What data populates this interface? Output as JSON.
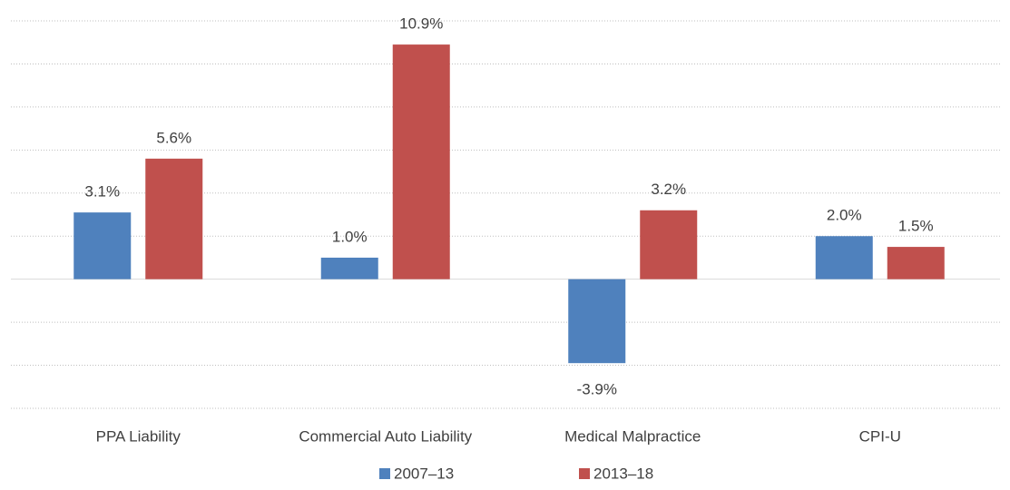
{
  "chart_data": {
    "type": "bar",
    "categories": [
      "PPA Liability",
      "Commercial Auto Liability",
      "Medical Malpractice",
      "CPI-U"
    ],
    "series": [
      {
        "name": "2007–13",
        "color": "#4f81bd",
        "values": [
          3.1,
          1.0,
          -3.9,
          2.0
        ],
        "value_labels": [
          "3.1%",
          "1.0%",
          "-3.9%",
          "2.0%"
        ]
      },
      {
        "name": "2013–18",
        "color": "#c0504d",
        "values": [
          5.6,
          10.9,
          3.2,
          1.5
        ],
        "value_labels": [
          "5.6%",
          "10.9%",
          "3.2%",
          "1.5%"
        ]
      }
    ],
    "ylim": [
      -6,
      12
    ],
    "yticks": [
      -6,
      -4,
      -2,
      0,
      2,
      4,
      6,
      8,
      10,
      12
    ],
    "grid": true,
    "legend": "bottom"
  }
}
